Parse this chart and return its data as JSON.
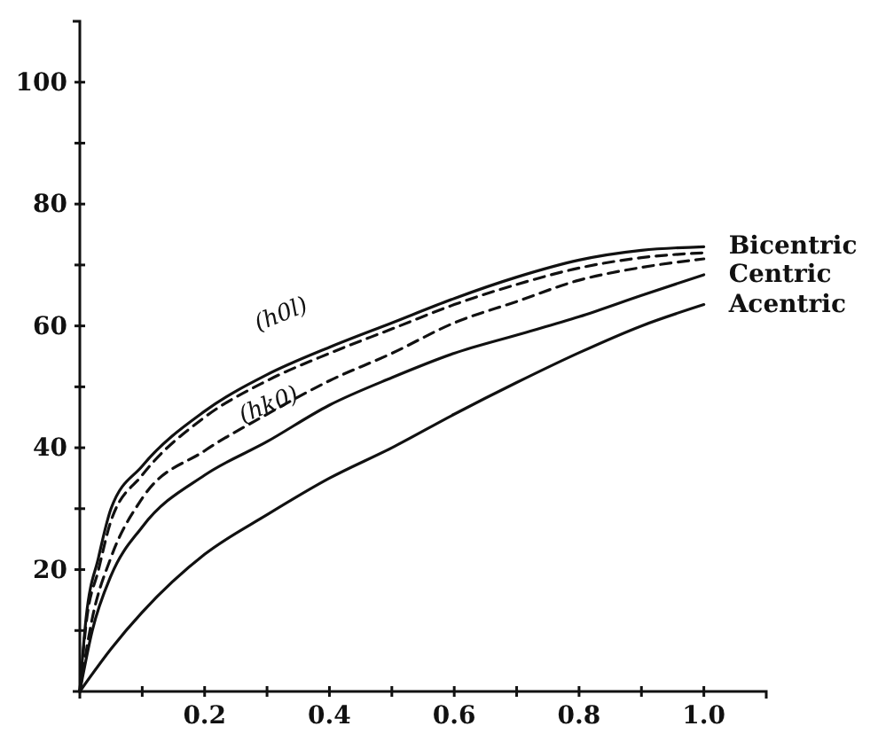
{
  "chart_data": {
    "type": "line",
    "xlim": [
      0,
      1.1
    ],
    "ylim": [
      0,
      110
    ],
    "xticks": [
      {
        "value": 0.1,
        "label": null
      },
      0.2,
      {
        "value": 0.3,
        "label": null
      },
      0.4,
      {
        "value": 0.5,
        "label": null
      },
      0.6,
      {
        "value": 0.7,
        "label": null
      },
      0.8,
      {
        "value": 0.9,
        "label": null
      },
      {
        "value": 1.0,
        "label": "1.0"
      }
    ],
    "yticks": [
      {
        "value": 10,
        "label": null
      },
      20,
      {
        "value": 30,
        "label": null
      },
      40,
      {
        "value": 50,
        "label": null
      },
      60,
      {
        "value": 70,
        "label": null
      },
      80,
      {
        "value": 90,
        "label": null
      },
      100
    ],
    "grid": false,
    "legend": false,
    "marker": "none",
    "series": [
      {
        "name": "Bicentric",
        "color": "#111111",
        "line_style": "solid",
        "x": [
          0,
          0.01,
          0.03,
          0.05,
          0.1,
          0.2,
          0.3,
          0.4,
          0.5,
          0.6,
          0.7,
          0.8,
          0.9,
          1.0
        ],
        "values": [
          0,
          12,
          22,
          30,
          37,
          46,
          52,
          56.5,
          60.5,
          64.5,
          68,
          70.8,
          72.4,
          73
        ]
      },
      {
        "color": "#111111",
        "line_style": "dashed",
        "x": [
          0,
          0.01,
          0.03,
          0.05,
          0.1,
          0.2,
          0.3,
          0.4,
          0.5,
          0.6,
          0.7,
          0.8,
          0.9,
          1.0
        ],
        "values": [
          0,
          11,
          20,
          28,
          35.5,
          45,
          51,
          55.5,
          59.5,
          63.5,
          66.8,
          69.5,
          71.2,
          72
        ]
      },
      {
        "color": "#111111",
        "line_style": "dashed",
        "x": [
          0,
          0.02,
          0.05,
          0.1,
          0.2,
          0.3,
          0.4,
          0.5,
          0.6,
          0.7,
          0.8,
          0.9,
          1.0
        ],
        "values": [
          0,
          12,
          22,
          31.7,
          39.5,
          45.5,
          51,
          55.5,
          60.5,
          64,
          67.5,
          69.6,
          71
        ]
      },
      {
        "name": "Centric",
        "color": "#111111",
        "line_style": "solid",
        "x": [
          0,
          0.02,
          0.05,
          0.1,
          0.2,
          0.3,
          0.4,
          0.5,
          0.6,
          0.7,
          0.8,
          0.9,
          1.0
        ],
        "values": [
          0,
          10,
          19,
          27,
          35.5,
          41,
          47,
          51.5,
          55.5,
          58.5,
          61.5,
          65,
          68.4
        ]
      },
      {
        "name": "Acentric",
        "color": "#111111",
        "line_style": "solid",
        "x": [
          0,
          0.05,
          0.1,
          0.2,
          0.3,
          0.4,
          0.5,
          0.6,
          0.7,
          0.8,
          0.9,
          1.0
        ],
        "values": [
          0,
          7,
          13,
          22.5,
          29,
          35,
          40,
          45.5,
          50.7,
          55.6,
          60,
          63.5
        ]
      }
    ],
    "annotations": [
      "(h0l)",
      "(hk0)"
    ]
  }
}
